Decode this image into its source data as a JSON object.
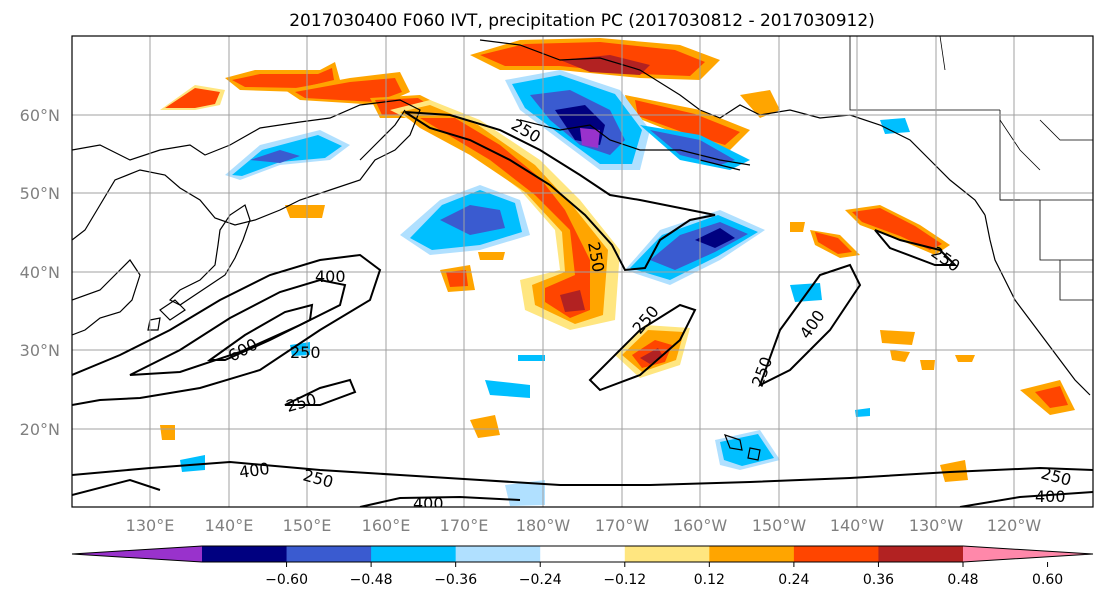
{
  "figure": {
    "title": "2017030400 F060 IVT, precipitation PC (2017030812 - 2017030912)"
  },
  "map": {
    "lat_labels": [
      "60°N",
      "50°N",
      "40°N",
      "30°N",
      "20°N"
    ],
    "lon_labels": [
      "130°E",
      "140°E",
      "150°E",
      "160°E",
      "170°E",
      "180°W",
      "170°W",
      "160°W",
      "150°W",
      "140°W",
      "130°W",
      "120°W"
    ],
    "contour_labels": [
      "250",
      "250",
      "400",
      "600",
      "250",
      "250",
      "400",
      "250",
      "250",
      "400",
      "250",
      "250",
      "400",
      "250",
      "400"
    ],
    "colors": {
      "purple": "#9932cc",
      "navy": "#000080",
      "royal_blue": "#3a5bd0",
      "deep_sky_blue": "#00bfff",
      "light_blue": "#b0e0ff",
      "white": "#ffffff",
      "light_yellow": "#ffe680",
      "orange": "#ffa500",
      "orange_red": "#ff4500",
      "firebrick": "#b22222",
      "pink": "#ff88aa"
    }
  },
  "colorbar": {
    "tick_labels": [
      "−0.60",
      "−0.48",
      "−0.36",
      "−0.24",
      "−0.12",
      "0.12",
      "0.24",
      "0.36",
      "0.48",
      "0.60"
    ],
    "bins": [
      "#9932cc",
      "#000080",
      "#3a5bd0",
      "#00bfff",
      "#b0e0ff",
      "#ffffff",
      "#ffe680",
      "#ffa500",
      "#ff4500",
      "#b22222",
      "#ff88aa"
    ]
  }
}
